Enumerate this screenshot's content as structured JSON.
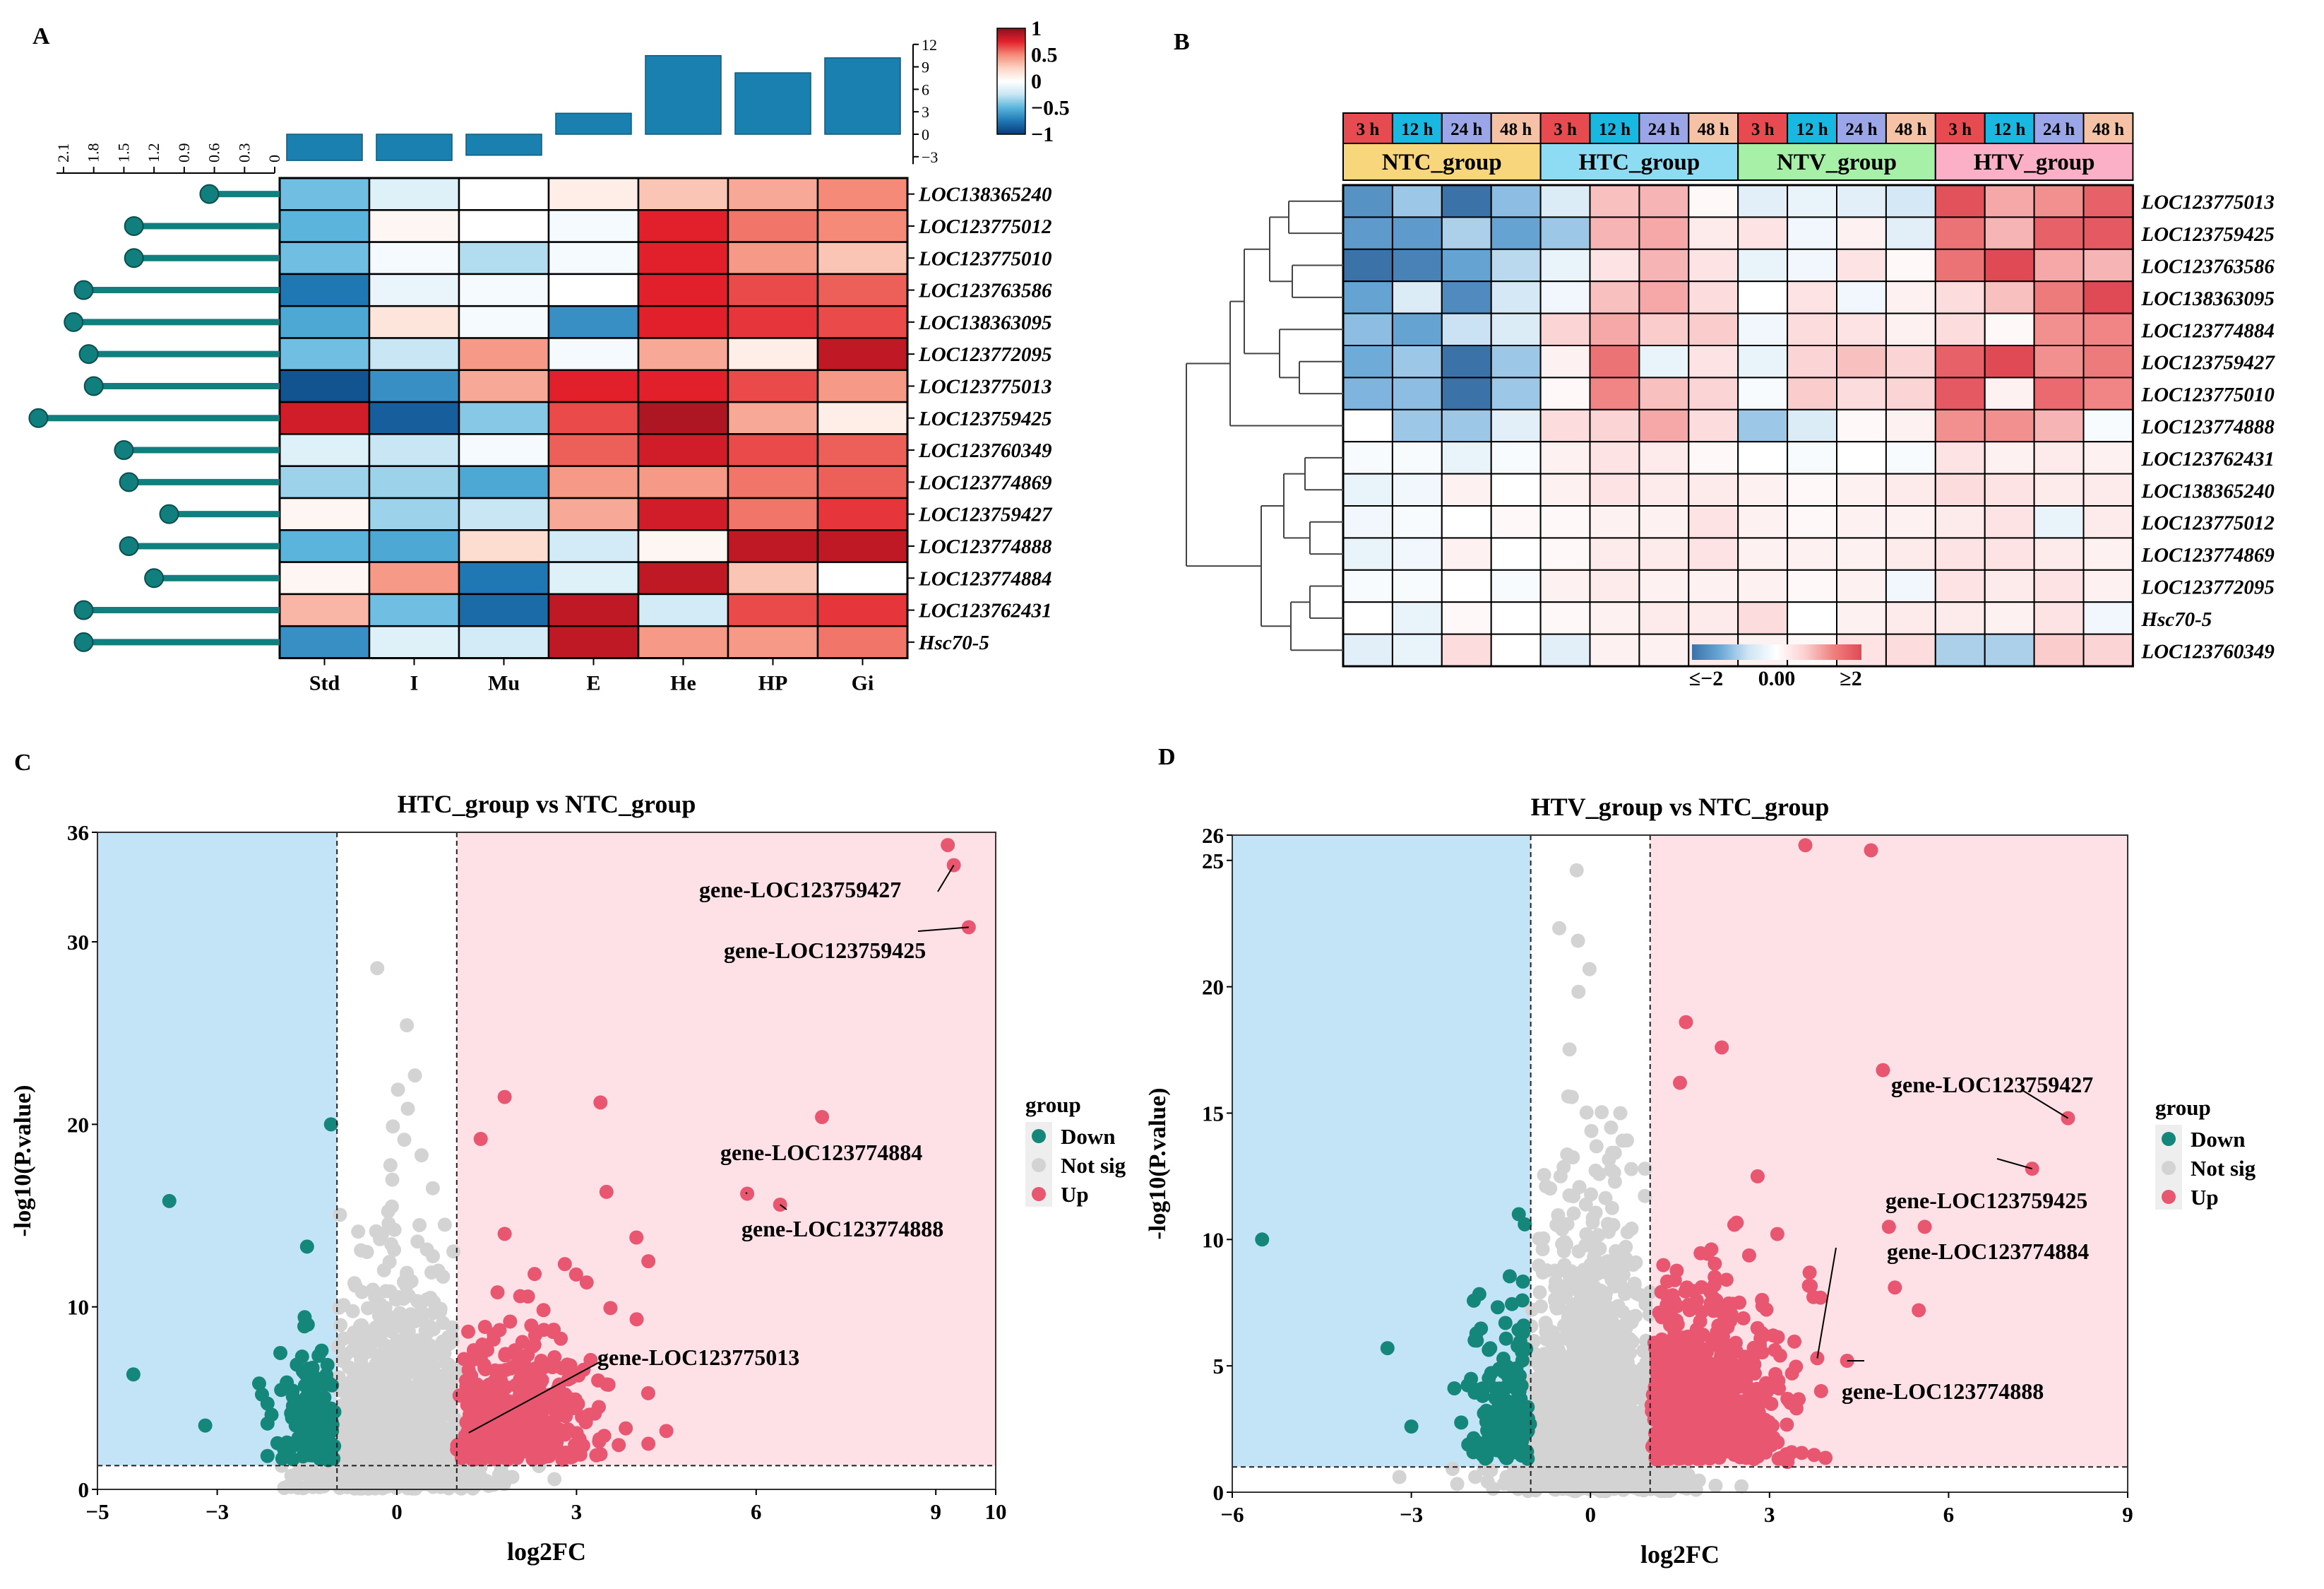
{
  "panels": {
    "a": {
      "label": "A"
    },
    "b": {
      "label": "B"
    },
    "c": {
      "label": "C"
    },
    "d": {
      "label": "D"
    }
  },
  "chart_data": [
    {
      "id": "A",
      "type": "heatmap",
      "title": "",
      "genes": [
        "LOC138365240",
        "LOC123775012",
        "LOC123775010",
        "LOC123763586",
        "LOC138363095",
        "LOC123772095",
        "LOC123775013",
        "LOC123759425",
        "LOC123760349",
        "LOC123774869",
        "LOC123759427",
        "LOC123774888",
        "LOC123774884",
        "LOC123762431",
        "Hsc70-5"
      ],
      "columns": [
        "Std",
        "I",
        "Mu",
        "E",
        "He",
        "HP",
        "Gi"
      ],
      "values": [
        [
          -0.45,
          -0.15,
          0.0,
          0.1,
          0.3,
          0.4,
          0.5
        ],
        [
          -0.5,
          0.05,
          0.0,
          -0.05,
          0.75,
          0.55,
          0.5
        ],
        [
          -0.45,
          -0.05,
          -0.3,
          -0.05,
          0.75,
          0.45,
          0.3
        ],
        [
          -0.75,
          -0.1,
          -0.05,
          0.0,
          0.75,
          0.65,
          0.6
        ],
        [
          -0.55,
          0.15,
          -0.05,
          -0.65,
          0.75,
          0.7,
          0.65
        ],
        [
          -0.45,
          -0.25,
          0.45,
          -0.05,
          0.4,
          0.1,
          0.85
        ],
        [
          -0.9,
          -0.65,
          0.4,
          0.75,
          0.75,
          0.65,
          0.45
        ],
        [
          0.8,
          -0.85,
          -0.4,
          0.65,
          0.9,
          0.4,
          0.1
        ],
        [
          -0.15,
          -0.25,
          -0.05,
          0.6,
          0.8,
          0.65,
          0.6
        ],
        [
          -0.35,
          -0.35,
          -0.55,
          0.45,
          0.45,
          0.55,
          0.6
        ],
        [
          0.05,
          -0.35,
          -0.25,
          0.4,
          0.8,
          0.55,
          0.7
        ],
        [
          -0.5,
          -0.55,
          0.2,
          -0.2,
          0.05,
          0.85,
          0.85
        ],
        [
          0.05,
          0.45,
          -0.75,
          -0.15,
          0.85,
          0.3,
          0.0
        ],
        [
          0.35,
          -0.45,
          -0.8,
          0.85,
          -0.2,
          0.65,
          0.7
        ],
        [
          -0.65,
          -0.15,
          -0.2,
          0.85,
          0.45,
          0.45,
          0.55
        ]
      ],
      "colorbar": {
        "ticks": [
          "1",
          "0.5",
          "0",
          "−0.5",
          "−1"
        ],
        "range": [
          -1,
          1
        ],
        "colors": [
          "#083c78",
          "#1f77b4",
          "#5ab4dc",
          "#c8e6f4",
          "#ffffff",
          "#fcd4c4",
          "#f58a78",
          "#e2202c",
          "#8c0f1e"
        ]
      },
      "lollipop": {
        "values": [
          0.65,
          1.4,
          1.4,
          1.9,
          2.0,
          1.85,
          1.8,
          2.35,
          1.5,
          1.45,
          1.05,
          1.45,
          1.2,
          1.9,
          1.9
        ],
        "ticks": [
          "2.1",
          "1.8",
          "1.5",
          "1.2",
          "0.9",
          "0.6",
          "0.3",
          "0"
        ],
        "range": [
          0,
          2.1
        ],
        "color": "#127f7f"
      },
      "topbars": {
        "values": [
          -3.5,
          -3.5,
          -2.8,
          2.8,
          10.5,
          8.2,
          10.2
        ],
        "ticks": [
          "12",
          "9",
          "6",
          "3",
          "0",
          "−3"
        ],
        "range": [
          -4,
          12
        ],
        "color": "#1a80b0"
      }
    },
    {
      "id": "B",
      "type": "heatmap",
      "title": "",
      "time_labels": [
        "3 h",
        "12 h",
        "24 h",
        "48 h",
        "3 h",
        "12 h",
        "24 h",
        "48 h",
        "3 h",
        "12 h",
        "24 h",
        "48 h",
        "3 h",
        "12 h",
        "24 h",
        "48 h"
      ],
      "time_colors": [
        "#e84b4f",
        "#19b8e0",
        "#9aa6e8",
        "#f6c2a6",
        "#e84b4f",
        "#19b8e0",
        "#9aa6e8",
        "#f6c2a6",
        "#e84b4f",
        "#19b8e0",
        "#9aa6e8",
        "#f6c2a6",
        "#e84b4f",
        "#19b8e0",
        "#9aa6e8",
        "#f6c2a6"
      ],
      "groups": [
        "NTC_group",
        "HTC_group",
        "NTV_group",
        "HTV_group"
      ],
      "group_colors": [
        "#f8d67c",
        "#8edcf3",
        "#a6f0a8",
        "#fbb0c8"
      ],
      "genes": [
        "LOC123775013",
        "LOC123759425",
        "LOC123763586",
        "LOC138363095",
        "LOC123774884",
        "LOC123759427",
        "LOC123775010",
        "LOC123774888",
        "LOC123762431",
        "LOC138365240",
        "LOC123775012",
        "LOC123774869",
        "LOC123772095",
        "Hsc70-5",
        "LOC123760349"
      ],
      "values": [
        [
          -1.6,
          -1.0,
          -2.2,
          -1.1,
          -0.5,
          0.8,
          0.9,
          0.1,
          -0.4,
          -0.3,
          -0.4,
          -0.6,
          1.9,
          1.0,
          1.2,
          1.7
        ],
        [
          -1.5,
          -1.5,
          -0.9,
          -1.4,
          -1.0,
          0.9,
          1.0,
          0.3,
          0.4,
          -0.2,
          0.2,
          -0.4,
          1.5,
          0.9,
          1.7,
          1.8
        ],
        [
          -2.0,
          -1.8,
          -1.4,
          -0.8,
          -0.3,
          0.4,
          0.9,
          0.4,
          -0.3,
          -0.2,
          0.4,
          0.1,
          1.5,
          2.1,
          1.0,
          0.9
        ],
        [
          -1.4,
          -0.5,
          -1.7,
          -0.6,
          -0.2,
          0.8,
          1.0,
          0.5,
          0.0,
          0.4,
          -0.2,
          0.2,
          0.5,
          0.8,
          1.4,
          2.1
        ],
        [
          -1.1,
          -1.4,
          -0.7,
          -0.5,
          0.6,
          1.0,
          0.7,
          0.7,
          -0.2,
          0.5,
          0.4,
          0.2,
          0.5,
          0.1,
          1.2,
          1.3
        ],
        [
          -1.3,
          -1.0,
          -2.2,
          -1.0,
          0.2,
          1.5,
          -0.3,
          0.4,
          -0.3,
          0.6,
          0.8,
          0.6,
          1.7,
          2.0,
          1.2,
          1.4
        ],
        [
          -1.2,
          -1.1,
          -2.0,
          -1.0,
          0.1,
          1.3,
          0.8,
          0.6,
          -0.1,
          0.7,
          0.5,
          0.6,
          1.8,
          0.2,
          1.6,
          1.3
        ],
        [
          0.0,
          -1.0,
          -1.0,
          -0.4,
          0.5,
          0.6,
          1.0,
          0.5,
          -1.0,
          -0.5,
          0.1,
          0.2,
          1.2,
          1.2,
          0.9,
          -0.1
        ],
        [
          -0.1,
          -0.1,
          -0.3,
          -0.1,
          0.2,
          0.4,
          0.3,
          0.1,
          0.0,
          -0.1,
          0.0,
          -0.1,
          0.4,
          0.2,
          0.3,
          0.2
        ],
        [
          -0.3,
          -0.2,
          0.2,
          0.0,
          0.2,
          0.4,
          0.3,
          0.3,
          0.2,
          0.1,
          0.2,
          0.3,
          0.5,
          0.4,
          0.3,
          0.3
        ],
        [
          -0.2,
          -0.1,
          0.0,
          0.1,
          0.1,
          0.2,
          0.2,
          0.4,
          0.2,
          0.1,
          0.2,
          0.2,
          0.3,
          0.4,
          -0.3,
          0.3
        ],
        [
          -0.3,
          -0.2,
          0.2,
          0.0,
          0.1,
          0.3,
          0.3,
          0.4,
          0.2,
          0.2,
          0.2,
          0.3,
          0.4,
          0.4,
          0.3,
          0.2
        ],
        [
          -0.1,
          -0.1,
          0.0,
          -0.1,
          0.2,
          0.3,
          0.2,
          0.2,
          0.2,
          0.1,
          0.2,
          -0.2,
          0.4,
          0.3,
          0.4,
          0.2
        ],
        [
          0.0,
          -0.3,
          0.1,
          0.0,
          0.1,
          0.2,
          0.3,
          0.3,
          0.5,
          0.0,
          0.2,
          0.3,
          0.3,
          0.2,
          0.4,
          -0.2
        ],
        [
          -0.4,
          -0.3,
          0.5,
          0.0,
          -0.4,
          0.2,
          0.2,
          0.3,
          0.2,
          0.1,
          0.4,
          0.5,
          -0.9,
          -0.9,
          0.7,
          0.6
        ]
      ],
      "colorbar": {
        "ticks": [
          "≤−2",
          "0.00",
          "≥2"
        ],
        "range": [
          -2,
          2
        ],
        "colors": [
          "#3b72a8",
          "#6aa8d8",
          "#cfe5f4",
          "#ffffff",
          "#fbd0d0",
          "#f08080",
          "#e04a55"
        ]
      }
    },
    {
      "id": "C",
      "type": "scatter",
      "title": "HTC_group vs NTC_group",
      "xlabel": "log2FC",
      "ylabel": "-log10(P.value)",
      "xlim": [
        -5,
        10
      ],
      "ylim": [
        0,
        36
      ],
      "xticks": [
        -5,
        -3,
        0,
        3,
        6,
        9,
        10
      ],
      "yticks": [
        0,
        10,
        20,
        30,
        36
      ],
      "fc_threshold": 1,
      "p_threshold": 1.3,
      "legend_title": "group",
      "legend": [
        "Down",
        "Not sig",
        "Up"
      ],
      "colors": {
        "down": "#14877a",
        "ns": "#d3d3d3",
        "up": "#e85670",
        "down_bg": "#c3e3f7",
        "up_bg": "#fde1e7"
      },
      "highlights": [
        {
          "gene": "gene-LOC123759427",
          "x": 9.3,
          "y": 34.2
        },
        {
          "gene": "gene-LOC123759425",
          "x": 9.55,
          "y": 30.8
        },
        {
          "gene": "gene-LOC123774884",
          "x": 5.85,
          "y": 16.2
        },
        {
          "gene": "gene-LOC123774888",
          "x": 6.4,
          "y": 15.6
        },
        {
          "gene": "gene-LOC123775013",
          "x": 1.2,
          "y": 3.1
        }
      ],
      "extra_points": [
        {
          "x": 9.2,
          "y": 35.3,
          "g": "up"
        },
        {
          "x": 7.1,
          "y": 20.4,
          "g": "up"
        },
        {
          "x": 1.8,
          "y": 21.5,
          "g": "up"
        },
        {
          "x": 3.4,
          "y": 21.2,
          "g": "up"
        },
        {
          "x": 1.4,
          "y": 19.2,
          "g": "up"
        },
        {
          "x": 3.5,
          "y": 16.3,
          "g": "up"
        },
        {
          "x": 4.0,
          "y": 13.8,
          "g": "up"
        },
        {
          "x": 1.8,
          "y": 14.0,
          "g": "up"
        },
        {
          "x": 4.2,
          "y": 12.5,
          "g": "up"
        },
        {
          "x": 2.3,
          "y": 11.8,
          "g": "up"
        },
        {
          "x": 4.5,
          "y": 3.2,
          "g": "up"
        },
        {
          "x": 4.2,
          "y": 2.5,
          "g": "up"
        },
        {
          "x": -3.8,
          "y": 15.8,
          "g": "down"
        },
        {
          "x": -1.1,
          "y": 20.0,
          "g": "down"
        },
        {
          "x": -4.4,
          "y": 6.3,
          "g": "down"
        },
        {
          "x": -2.3,
          "y": 5.8,
          "g": "down"
        },
        {
          "x": -3.2,
          "y": 3.5,
          "g": "down"
        },
        {
          "x": -1.5,
          "y": 13.3,
          "g": "down"
        },
        {
          "x": 0.6,
          "y": 16.5,
          "g": "ns"
        },
        {
          "x": -0.6,
          "y": 13.1,
          "g": "ns"
        },
        {
          "x": 0.8,
          "y": 14.5,
          "g": "ns"
        }
      ],
      "random_counts": {
        "up": 520,
        "down": 150,
        "ns": 1300
      },
      "random_seed": 11
    },
    {
      "id": "D",
      "type": "scatter",
      "title": "HTV_group vs NTC_group",
      "xlabel": "log2FC",
      "ylabel": "-log10(P.value)",
      "xlim": [
        -6,
        9
      ],
      "ylim": [
        0,
        26
      ],
      "xticks": [
        -6,
        -3,
        0,
        3,
        6,
        9
      ],
      "yticks": [
        0,
        5,
        10,
        15,
        20,
        25,
        26
      ],
      "fc_threshold": 1,
      "p_threshold": 1.0,
      "legend_title": "group",
      "legend": [
        "Down",
        "Not sig",
        "Up"
      ],
      "colors": {
        "down": "#14877a",
        "ns": "#d3d3d3",
        "up": "#e85670",
        "down_bg": "#c3e3f7",
        "up_bg": "#fde1e7"
      },
      "highlights": [
        {
          "gene": "gene-LOC123759427",
          "x": 8.0,
          "y": 14.8
        },
        {
          "gene": "gene-LOC123759425",
          "x": 7.4,
          "y": 12.8
        },
        {
          "gene": "gene-LOC123774884",
          "x": 3.8,
          "y": 5.3
        },
        {
          "gene": "gene-LOC123774888",
          "x": 4.3,
          "y": 5.2
        }
      ],
      "extra_points": [
        {
          "x": 3.6,
          "y": 25.6,
          "g": "up"
        },
        {
          "x": 4.7,
          "y": 25.4,
          "g": "up"
        },
        {
          "x": 1.6,
          "y": 18.6,
          "g": "up"
        },
        {
          "x": 2.2,
          "y": 17.6,
          "g": "up"
        },
        {
          "x": 1.5,
          "y": 16.2,
          "g": "up"
        },
        {
          "x": 4.9,
          "y": 16.7,
          "g": "up"
        },
        {
          "x": 2.8,
          "y": 12.5,
          "g": "up"
        },
        {
          "x": 5.0,
          "y": 10.5,
          "g": "up"
        },
        {
          "x": 5.6,
          "y": 10.5,
          "g": "up"
        },
        {
          "x": 5.1,
          "y": 8.1,
          "g": "up"
        },
        {
          "x": 5.5,
          "y": 7.2,
          "g": "up"
        },
        {
          "x": 3.3,
          "y": 1.2,
          "g": "up"
        },
        {
          "x": -5.5,
          "y": 10.0,
          "g": "down"
        },
        {
          "x": -3.4,
          "y": 5.7,
          "g": "down"
        },
        {
          "x": -1.2,
          "y": 11.0,
          "g": "down"
        },
        {
          "x": -3.0,
          "y": 2.6,
          "g": "down"
        },
        {
          "x": -1.1,
          "y": 10.6,
          "g": "down"
        },
        {
          "x": -0.2,
          "y": 19.8,
          "g": "ns"
        },
        {
          "x": 0.5,
          "y": 15.0,
          "g": "ns"
        },
        {
          "x": -0.5,
          "y": 12.5,
          "g": "ns"
        },
        {
          "x": -3.2,
          "y": 0.6,
          "g": "ns"
        }
      ],
      "random_counts": {
        "up": 760,
        "down": 170,
        "ns": 1400
      },
      "random_seed": 23
    }
  ]
}
